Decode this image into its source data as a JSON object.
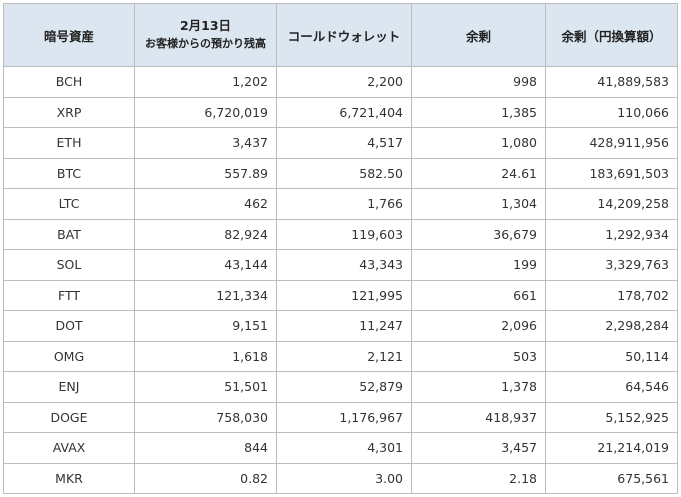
{
  "table": {
    "headers": {
      "asset": "暗号資産",
      "date_line1": "2月13日",
      "date_line2": "お客様からの預かり残高",
      "cold": "コールドウォレット",
      "surplus": "余剰",
      "surplus_jpy": "余剰（円換算額）"
    },
    "rows": [
      {
        "asset": "BCH",
        "deposit": "1,202",
        "cold": "2,200",
        "surplus": "998",
        "jpy": "41,889,583"
      },
      {
        "asset": "XRP",
        "deposit": "6,720,019",
        "cold": "6,721,404",
        "surplus": "1,385",
        "jpy": "110,066"
      },
      {
        "asset": "ETH",
        "deposit": "3,437",
        "cold": "4,517",
        "surplus": "1,080",
        "jpy": "428,911,956"
      },
      {
        "asset": "BTC",
        "deposit": "557.89",
        "cold": "582.50",
        "surplus": "24.61",
        "jpy": "183,691,503"
      },
      {
        "asset": "LTC",
        "deposit": "462",
        "cold": "1,766",
        "surplus": "1,304",
        "jpy": "14,209,258"
      },
      {
        "asset": "BAT",
        "deposit": "82,924",
        "cold": "119,603",
        "surplus": "36,679",
        "jpy": "1,292,934"
      },
      {
        "asset": "SOL",
        "deposit": "43,144",
        "cold": "43,343",
        "surplus": "199",
        "jpy": "3,329,763"
      },
      {
        "asset": "FTT",
        "deposit": "121,334",
        "cold": "121,995",
        "surplus": "661",
        "jpy": "178,702"
      },
      {
        "asset": "DOT",
        "deposit": "9,151",
        "cold": "11,247",
        "surplus": "2,096",
        "jpy": "2,298,284"
      },
      {
        "asset": "OMG",
        "deposit": "1,618",
        "cold": "2,121",
        "surplus": "503",
        "jpy": "50,114"
      },
      {
        "asset": "ENJ",
        "deposit": "51,501",
        "cold": "52,879",
        "surplus": "1,378",
        "jpy": "64,546"
      },
      {
        "asset": "DOGE",
        "deposit": "758,030",
        "cold": "1,176,967",
        "surplus": "418,937",
        "jpy": "5,152,925"
      },
      {
        "asset": "AVAX",
        "deposit": "844",
        "cold": "4,301",
        "surplus": "3,457",
        "jpy": "21,214,019"
      },
      {
        "asset": "MKR",
        "deposit": "0.82",
        "cold": "3.00",
        "surplus": "2.18",
        "jpy": "675,561"
      }
    ]
  }
}
